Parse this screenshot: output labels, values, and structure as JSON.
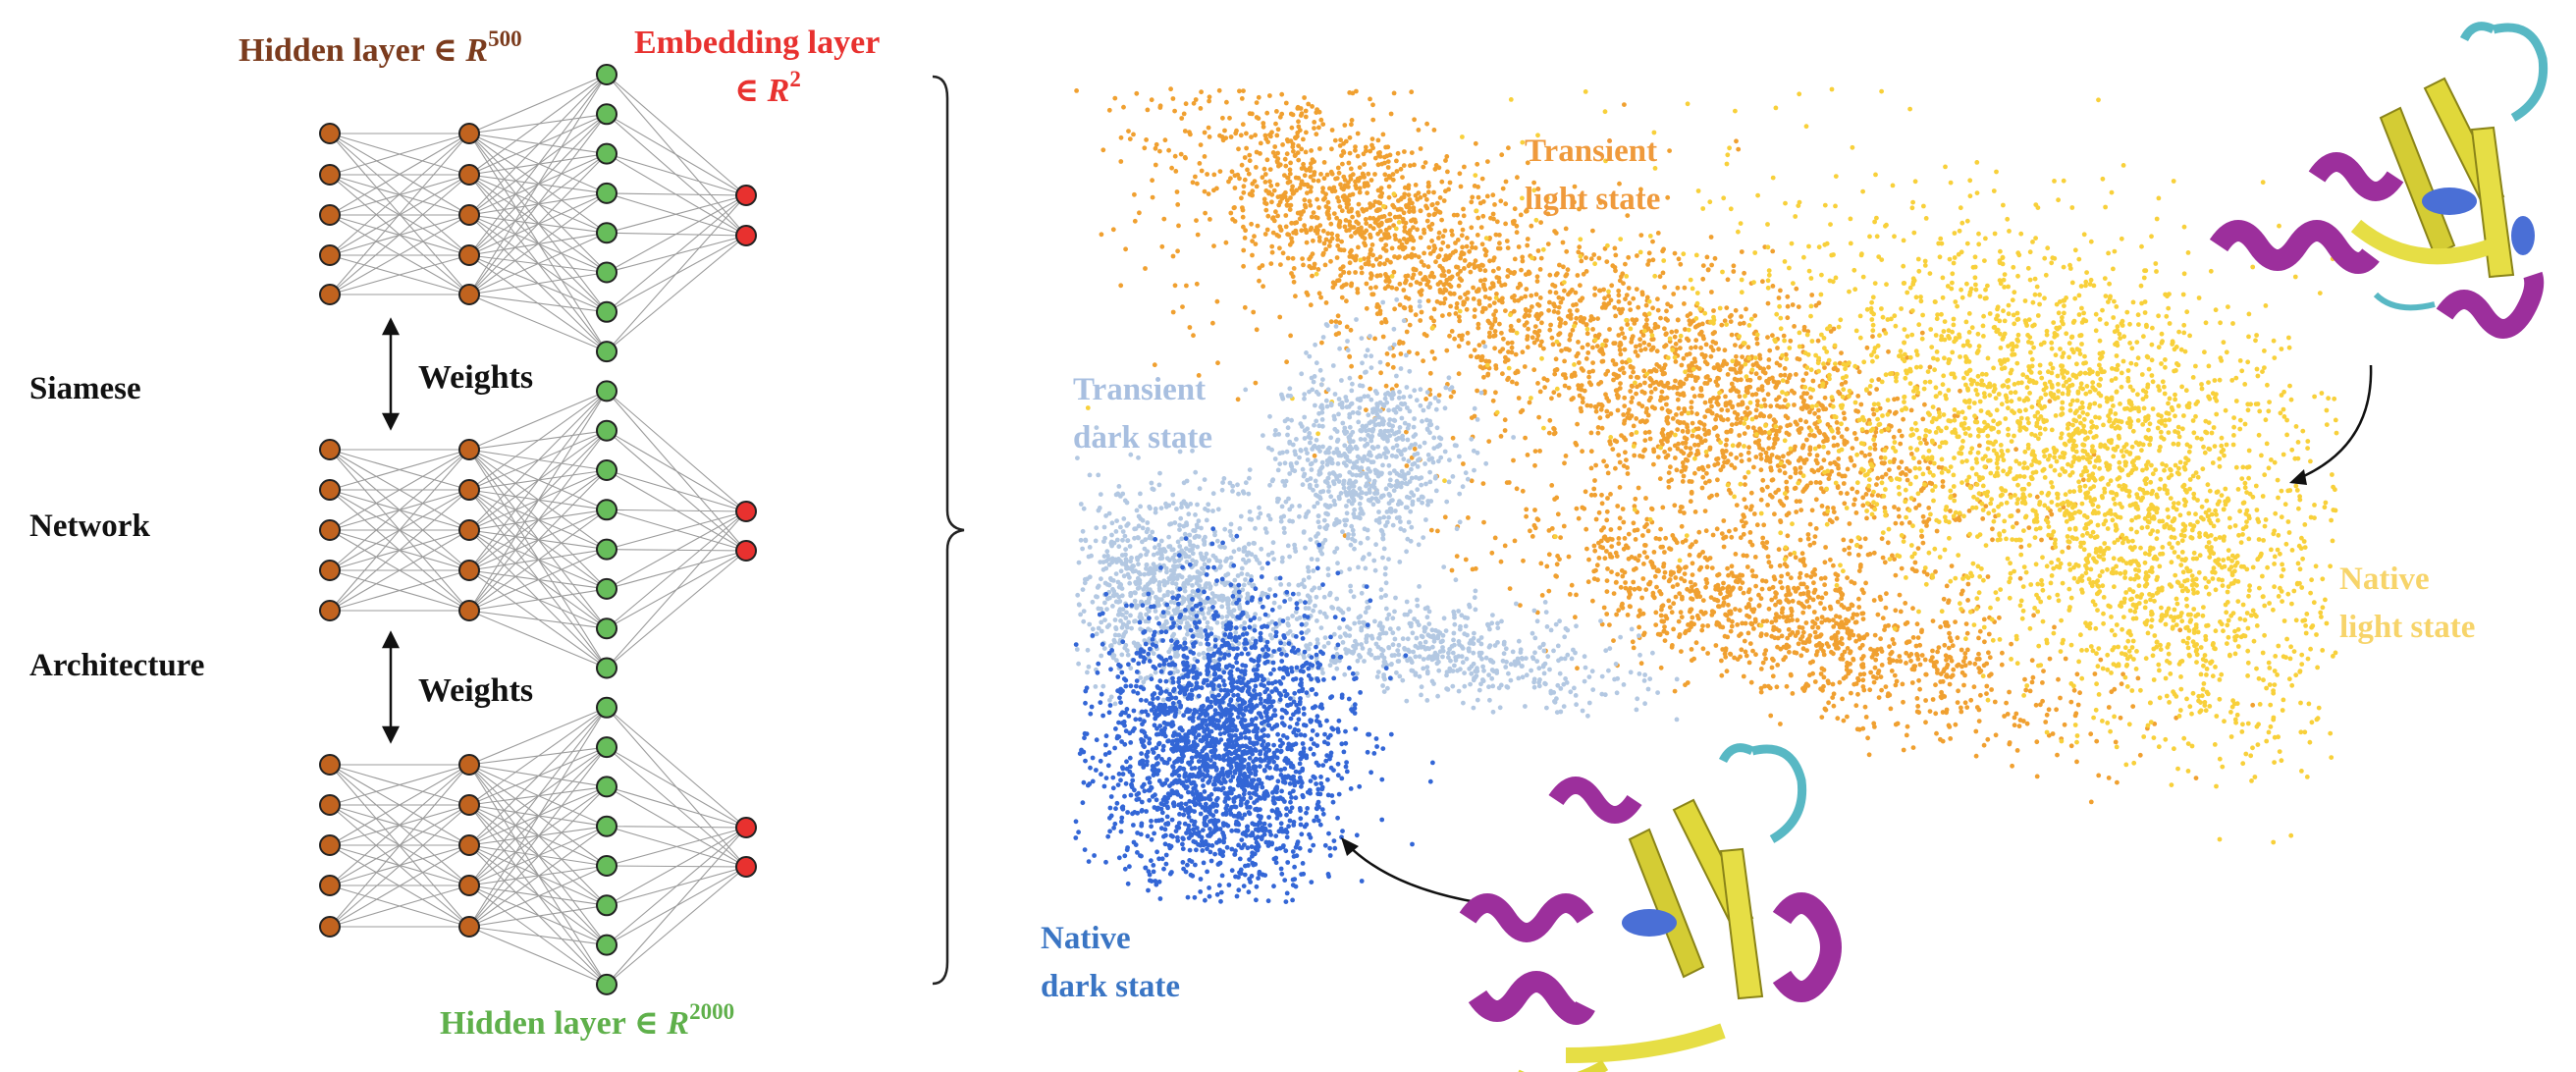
{
  "network": {
    "top_label_prefix": "Hidden layer ∈ ",
    "top_label_var": "R",
    "top_label_exp": "500",
    "embed_label_line1": "Embedding layer",
    "embed_label_line2_prefix": "∈ ",
    "embed_label_line2_var": "R",
    "embed_label_line2_exp": "2",
    "bottom_label_prefix": "Hidden layer ∈ ",
    "bottom_label_var": "R",
    "bottom_label_exp": "2000",
    "side_words": [
      "Siamese",
      "Network",
      "Architecture"
    ],
    "weights_label": "Weights",
    "colors": {
      "brown": "#c1631f",
      "green": "#67bd5b",
      "red": "#e8312f",
      "edge": "#9b9b9b",
      "top_label": "#7b3b1d",
      "embed_label": "#e8312f",
      "bottom_label": "#5fb04b"
    }
  },
  "embedding_map": {
    "states": [
      {
        "id": "transient-light",
        "lines": [
          "Transient",
          "light state"
        ],
        "color": "#ef9a3c",
        "dot_color": "#f0a030"
      },
      {
        "id": "native-light",
        "lines": [
          "Native",
          "light state"
        ],
        "color": "#f7d46a",
        "dot_color": "#f8d03a"
      },
      {
        "id": "transient-dark",
        "lines": [
          "Transient",
          "dark state"
        ],
        "color": "#a8bfe0",
        "dot_color": "#b3c8e2"
      },
      {
        "id": "native-dark",
        "lines": [
          "Native",
          "dark state"
        ],
        "color": "#3a75c4",
        "dot_color": "#3366d6"
      }
    ],
    "protein_colors": {
      "helix": "#9c2f9c",
      "sheet": "#e0d83a",
      "coil": "#58b8c4",
      "ligand": "#4a6fd6"
    }
  }
}
